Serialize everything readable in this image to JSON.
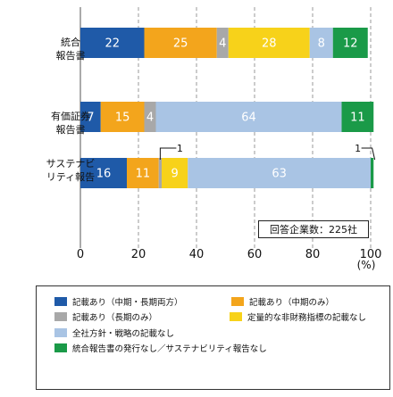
{
  "chart_data": {
    "type": "bar",
    "orientation": "horizontal",
    "stacked": true,
    "categories": [
      {
        "line1": "統合",
        "line2": "報告書"
      },
      {
        "line1": "有価証券",
        "line2": "報告書"
      },
      {
        "line1": "サステナビ",
        "line2": "リティ報告"
      }
    ],
    "series": [
      {
        "name": "記載あり（中期・長期両方）",
        "color": "#1f5aa8",
        "text_color": "#ffffff",
        "values": [
          22,
          7,
          16
        ]
      },
      {
        "name": "記載あり（中期のみ）",
        "color": "#f3a51c",
        "text_color": "#ffffff",
        "values": [
          25,
          15,
          11
        ]
      },
      {
        "name": "記載あり（長期のみ）",
        "color": "#a8a8a8",
        "text_color": "#ffffff",
        "values": [
          4,
          4,
          1
        ]
      },
      {
        "name": "定量的な非財務指標の記載なし",
        "color": "#f7d21a",
        "text_color": "#ffffff",
        "values": [
          28,
          0,
          9
        ]
      },
      {
        "name": "全社方針・戦略の記載なし",
        "color": "#a9c4e4",
        "text_color": "#ffffff",
        "values": [
          8,
          64,
          63
        ]
      },
      {
        "name": "統合報告書の発行なし／サステナビリティ報告なし",
        "color": "#1a9a48",
        "text_color": "#ffffff",
        "values": [
          12,
          11,
          1
        ]
      }
    ],
    "bar_labels": [
      [
        "22",
        "25",
        "4",
        "28",
        "8",
        "12"
      ],
      [
        "7",
        "15",
        "4",
        "",
        "64",
        "11"
      ],
      [
        "16",
        "11",
        "",
        "9",
        "63",
        ""
      ]
    ],
    "callouts": [
      {
        "category_index": 2,
        "series_index": 2,
        "label": "1"
      },
      {
        "category_index": 2,
        "series_index": 5,
        "label": "1"
      }
    ],
    "x_ticks": [
      0,
      20,
      40,
      60,
      80,
      100
    ],
    "x_tick_labels": [
      "0",
      "20",
      "40",
      "60",
      "80",
      "100"
    ],
    "xlim": [
      0,
      100
    ],
    "x_unit": "(%)",
    "grid": "vertical dashed",
    "legend_position": "bottom"
  },
  "note": "回答企業数：225社"
}
